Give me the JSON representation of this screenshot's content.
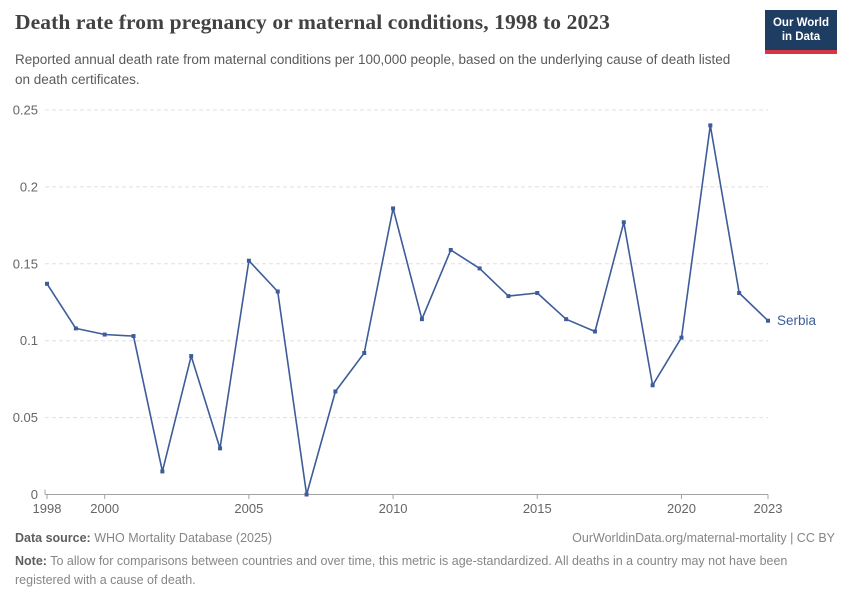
{
  "header": {
    "title": "Death rate from pregnancy or maternal conditions, 1998 to 2023",
    "subtitle": "Reported annual death rate from maternal conditions per 100,000 people, based on the underlying cause of death listed on death certificates.",
    "logo": {
      "line1": "Our World",
      "line2": "in Data"
    }
  },
  "chart_data": {
    "type": "line",
    "title": "Death rate from pregnancy or maternal conditions, 1998 to 2023",
    "xlabel": "",
    "ylabel": "",
    "xlim": [
      1998,
      2023
    ],
    "ylim": [
      0,
      0.25
    ],
    "x_ticks": [
      1998,
      2000,
      2005,
      2010,
      2015,
      2020,
      2023
    ],
    "y_ticks": [
      0,
      0.05,
      0.1,
      0.15,
      0.2,
      0.25
    ],
    "grid": "horizontal-dashed",
    "legend_position": "end-of-line",
    "x": [
      1998,
      1999,
      2000,
      2001,
      2002,
      2003,
      2004,
      2005,
      2006,
      2007,
      2008,
      2009,
      2010,
      2011,
      2012,
      2013,
      2014,
      2015,
      2016,
      2017,
      2018,
      2019,
      2020,
      2021,
      2022,
      2023
    ],
    "series": [
      {
        "name": "Serbia",
        "color": "#3d5c99",
        "values": [
          0.137,
          0.108,
          0.104,
          0.103,
          0.015,
          0.09,
          0.03,
          0.152,
          0.132,
          0,
          0.067,
          0.092,
          0.186,
          0.114,
          0.159,
          0.147,
          0.129,
          0.131,
          0.114,
          0.106,
          0.177,
          0.071,
          0.102,
          0.24,
          0.131,
          0.113
        ]
      }
    ],
    "colors": {
      "grid": "#e0e0e0",
      "axis": "#a3a3a3",
      "tick_label": "#666666"
    }
  },
  "footer": {
    "source_label": "Data source:",
    "source_text": " WHO Mortality Database (2025)",
    "link_text": "OurWorldinData.org/maternal-mortality | CC BY",
    "note_label": "Note:",
    "note_text": " To allow for comparisons between countries and over time, this metric is age-standardized. All deaths in a country may not have been registered with a cause of death."
  }
}
